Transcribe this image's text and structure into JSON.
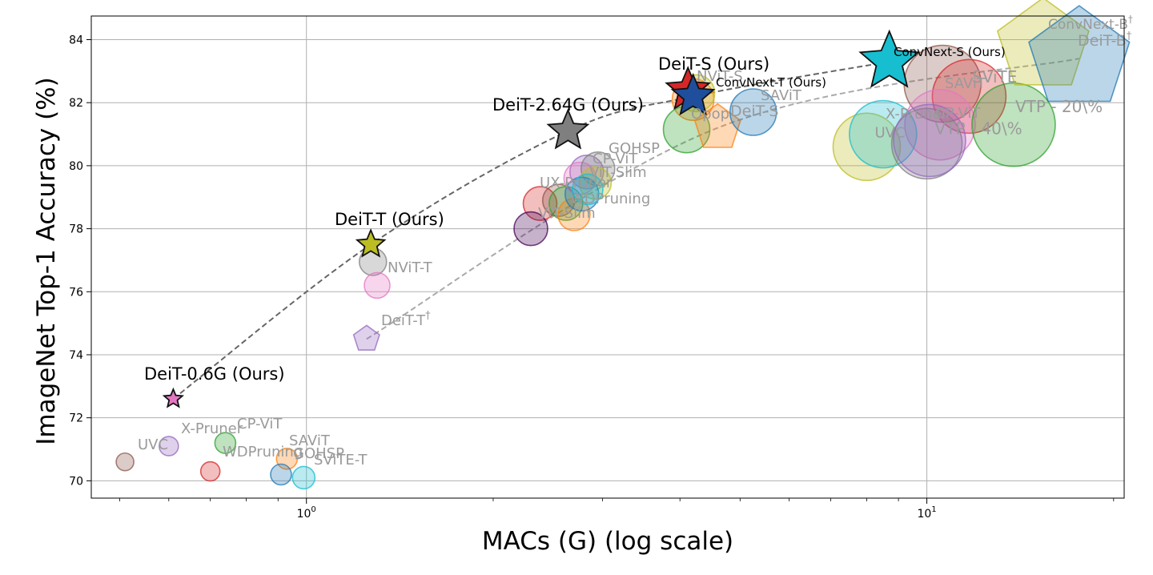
{
  "chart_data": {
    "type": "scatter",
    "title": "",
    "xlabel": "MACs (G) (log scale)",
    "ylabel": "ImageNet Top-1 Accuracy (%)",
    "xscale": "log",
    "xlim": [
      0.45,
      20.8
    ],
    "ylim": [
      69.45,
      84.75
    ],
    "xticks": [
      {
        "value": 1,
        "label": "10^0"
      },
      {
        "value": 10,
        "label": "10^1"
      }
    ],
    "yticks": [
      70,
      72,
      74,
      76,
      78,
      80,
      82,
      84
    ],
    "grid": true,
    "colors": {
      "ours_line": "#666666",
      "baseline_line": "#aaaaaa",
      "grid": "#b0b0b0",
      "axis": "#000000",
      "faded_label": "#9a9a9a"
    },
    "curves": [
      {
        "name": "ours",
        "points": [
          {
            "x": 0.61,
            "y": 72.6
          },
          {
            "x": 1.27,
            "y": 77.5
          },
          {
            "x": 2.64,
            "y": 81.1
          },
          {
            "x": 4.2,
            "y": 82.2
          },
          {
            "x": 8.7,
            "y": 83.3
          }
        ],
        "color": "#666666"
      },
      {
        "name": "deit",
        "points": [
          {
            "x": 1.25,
            "y": 74.5
          },
          {
            "x": 4.6,
            "y": 81.2
          },
          {
            "x": 17.6,
            "y": 83.4
          }
        ],
        "color": "#aaaaaa"
      }
    ],
    "points": [
      {
        "label": "UVC",
        "x": 0.51,
        "y": 70.6,
        "size": 11,
        "color": "#8c564b",
        "shape": "circle"
      },
      {
        "label": "X-Pruner",
        "x": 0.6,
        "y": 71.1,
        "size": 12,
        "color": "#9467bd",
        "shape": "circle"
      },
      {
        "label": "CP-ViT",
        "x": 0.74,
        "y": 71.2,
        "size": 13,
        "color": "#2ca02c",
        "shape": "circle"
      },
      {
        "label": "WDPruning",
        "x": 0.7,
        "y": 70.3,
        "size": 12,
        "color": "#d62728",
        "shape": "circle"
      },
      {
        "label": "SAViT",
        "x": 0.93,
        "y": 70.7,
        "size": 13,
        "color": "#ff7f0e",
        "shape": "circle"
      },
      {
        "label": "GOHSP",
        "x": 0.91,
        "y": 70.2,
        "size": 13,
        "color": "#1f77b4",
        "shape": "circle"
      },
      {
        "label": "SViTE-T",
        "x": 0.99,
        "y": 70.1,
        "size": 14,
        "color": "#17becf",
        "shape": "circle"
      },
      {
        "label": "",
        "x": 1.28,
        "y": 76.95,
        "size": 17,
        "color": "#7f7f7f",
        "shape": "circle"
      },
      {
        "label": "NViT-T",
        "x": 1.3,
        "y": 76.2,
        "size": 16,
        "color": "#e377c2",
        "shape": "circle"
      },
      {
        "label": "DeiT-T†",
        "x": 1.25,
        "y": 74.5,
        "size": 17,
        "color": "#9467bd",
        "shape": "pentagon"
      },
      {
        "label": "",
        "x": 2.38,
        "y": 78.8,
        "size": 21,
        "color": "#d62728",
        "shape": "circle"
      },
      {
        "label": "",
        "x": 2.55,
        "y": 78.9,
        "size": 20,
        "color": "#8c564b",
        "shape": "circle"
      },
      {
        "label": "",
        "x": 2.3,
        "y": 78.0,
        "size": 21,
        "color": "#440154",
        "shape": "circle"
      },
      {
        "label": "UX-Pruner",
        "x": 2.62,
        "y": 78.8,
        "size": 21,
        "color": "#2ca02c",
        "shape": "circle"
      },
      {
        "label": "ViT-Slim",
        "x": 2.7,
        "y": 78.45,
        "size": 20,
        "color": "#ff7f0e",
        "shape": "circle"
      },
      {
        "label": "GOHSP",
        "x": 2.83,
        "y": 79.8,
        "size": 21,
        "color": "#9467bd",
        "shape": "circle"
      },
      {
        "label": "",
        "x": 2.76,
        "y": 79.6,
        "size": 20,
        "color": "#e377c2",
        "shape": "circle"
      },
      {
        "label": "CP-ViT",
        "x": 2.95,
        "y": 79.9,
        "size": 21,
        "color": "#7f7f7f",
        "shape": "circle"
      },
      {
        "label": "ViT-Slim",
        "x": 2.92,
        "y": 79.45,
        "size": 20,
        "color": "#bcbd22",
        "shape": "circle"
      },
      {
        "label": "WDPruning",
        "x": 2.78,
        "y": 79.1,
        "size": 21,
        "color": "#1f77b4",
        "shape": "circle"
      },
      {
        "label": "",
        "x": 2.84,
        "y": 79.25,
        "size": 19,
        "color": "#17becf",
        "shape": "circle"
      },
      {
        "label": "NViT-S",
        "x": 4.2,
        "y": 82.1,
        "size": 26,
        "color": "#ff7f0e",
        "shape": "circle"
      },
      {
        "label": "",
        "x": 4.25,
        "y": 82.3,
        "size": 23,
        "color": "#bcbd22",
        "shape": "circle"
      },
      {
        "label": "",
        "x": 4.1,
        "y": 81.15,
        "size": 29,
        "color": "#2ca02c",
        "shape": "circle"
      },
      {
        "label": "Opop",
        "x": 4.6,
        "y": 81.2,
        "size": 30,
        "color": "#ff7f0e",
        "shape": "pentagon"
      },
      {
        "label": "DeiT-S",
        "x": 5.25,
        "y": 81.7,
        "size": 29,
        "color": "#1f77b4",
        "shape": "circle"
      },
      {
        "label": "SAViT",
        "x": 5.5,
        "y": 81.7,
        "size": 2,
        "color": "#1f77b4",
        "shape": "none"
      },
      {
        "label": "SAViT",
        "x": 10.6,
        "y": 82.6,
        "size": 48,
        "color": "#8c564b",
        "shape": "circle"
      },
      {
        "label": "SViTE",
        "x": 11.7,
        "y": 82.2,
        "size": 46,
        "color": "#d62728",
        "shape": "circle"
      },
      {
        "label": "",
        "x": 10.5,
        "y": 81.3,
        "size": 44,
        "color": "#e377c2",
        "shape": "circle"
      },
      {
        "label": "VTP - 20\\%",
        "x": 13.8,
        "y": 81.3,
        "size": 52,
        "color": "#2ca02c",
        "shape": "circle"
      },
      {
        "label": "UVC",
        "x": 8.0,
        "y": 80.6,
        "size": 42,
        "color": "#bcbd22",
        "shape": "circle"
      },
      {
        "label": "X-Pruner",
        "x": 8.5,
        "y": 81.0,
        "size": 42,
        "color": "#17becf",
        "shape": "circle"
      },
      {
        "label": "VTP - 40\\%",
        "x": 10.0,
        "y": 80.7,
        "size": 44,
        "color": "#7f7f7f",
        "shape": "circle"
      },
      {
        "label": "CP-ViT",
        "x": 10.1,
        "y": 80.8,
        "size": 45,
        "color": "#9467bd",
        "shape": "circle"
      },
      {
        "label": "ConvNext-B†",
        "x": 15.4,
        "y": 83.8,
        "size": 60,
        "color": "#bcbd22",
        "shape": "pentagon"
      },
      {
        "label": "DeiT-B†",
        "x": 17.6,
        "y": 83.4,
        "size": 66,
        "color": "#1f77b4",
        "shape": "pentagon"
      }
    ],
    "ours_stars": [
      {
        "label": "DeiT-0.6G (Ours)",
        "x": 0.61,
        "y": 72.6,
        "size": 12,
        "color": "#e377c2"
      },
      {
        "label": "DeiT-T (Ours)",
        "x": 1.27,
        "y": 77.5,
        "size": 18,
        "color": "#bcbd22"
      },
      {
        "label": "DeiT-2.64G (Ours)",
        "x": 2.64,
        "y": 81.1,
        "size": 26,
        "color": "#7f7f7f"
      },
      {
        "label": "DeiT-S (Ours)",
        "x": 4.12,
        "y": 82.4,
        "size": 28,
        "color": "#d62728"
      },
      {
        "label": "ConvNext-T (Ours)",
        "x": 4.2,
        "y": 82.2,
        "size": 27,
        "color": "#1f4e9c"
      },
      {
        "label": "ConvNext-S (Ours)",
        "x": 8.7,
        "y": 83.3,
        "size": 38,
        "color": "#17becf"
      }
    ],
    "legend": "none"
  }
}
